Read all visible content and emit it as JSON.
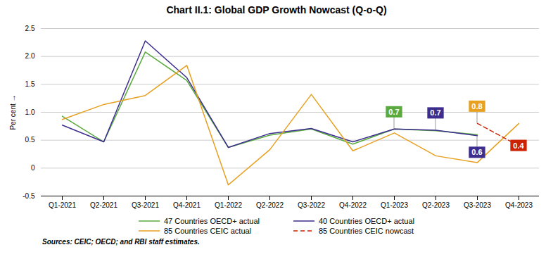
{
  "chart_data": {
    "type": "line",
    "title": "Chart II.1: Global GDP Growth Nowcast (Q-o-Q)",
    "ylabel": "Per cent",
    "caption": "Sources: CEIC; OECD; and RBI staff estimates.",
    "categories": [
      "Q1-2021",
      "Q2-2021",
      "Q3-2021",
      "Q4-2021",
      "Q1-2022",
      "Q2-2022",
      "Q3-2022",
      "Q4-2022",
      "Q1-2023",
      "Q2-2023",
      "Q3-2023",
      "Q4-2023"
    ],
    "series": [
      {
        "name": "47 Countries OECD+ actual",
        "color": "#5aaa3f",
        "line_style": "solid",
        "values": [
          0.93,
          0.47,
          2.08,
          1.57,
          0.37,
          0.59,
          0.7,
          0.43,
          0.7,
          0.67,
          0.6,
          null
        ]
      },
      {
        "name": "40 Countries OECD+ actual",
        "color": "#3d2d8f",
        "line_style": "solid",
        "values": [
          0.77,
          0.47,
          2.28,
          1.62,
          0.37,
          0.62,
          0.71,
          0.47,
          0.7,
          0.68,
          0.58,
          null
        ]
      },
      {
        "name": "85 Countries CEIC actual",
        "color": "#e8a020",
        "line_style": "solid",
        "values": [
          0.87,
          1.14,
          1.3,
          1.84,
          -0.3,
          0.33,
          1.32,
          0.31,
          0.63,
          0.22,
          0.1,
          0.8
        ]
      },
      {
        "name": "85 Countries CEIC nowcast",
        "color": "#cc2200",
        "line_style": "dashed",
        "values": [
          null,
          null,
          null,
          null,
          null,
          null,
          null,
          null,
          null,
          null,
          0.8,
          0.4
        ]
      }
    ],
    "ylim": [
      -0.5,
      2.5
    ],
    "yticks": [
      -0.5,
      0,
      0.5,
      {
        "value": 1,
        "label": "1.0"
      },
      1.5,
      {
        "value": 2,
        "label": "2.0"
      },
      2.5
    ],
    "grid": true,
    "legend": "bottom",
    "annotations": [
      {
        "text": "0.7",
        "x": "Q1-2023",
        "y": 0.7,
        "color": "#5aaa3f"
      },
      {
        "text": "0.7",
        "x": "Q2-2023",
        "y": 0.68,
        "color": "#3d2d8f"
      },
      {
        "text": "0.6",
        "x": "Q3-2023",
        "y": 0.58,
        "color": "#3d2d8f"
      },
      {
        "text": "0.8",
        "x": "Q3-2023",
        "y": 0.8,
        "color": "#e8a020"
      },
      {
        "text": "0.4",
        "x": "Q4-2023",
        "y": 0.4,
        "color": "#cc2200"
      }
    ]
  }
}
